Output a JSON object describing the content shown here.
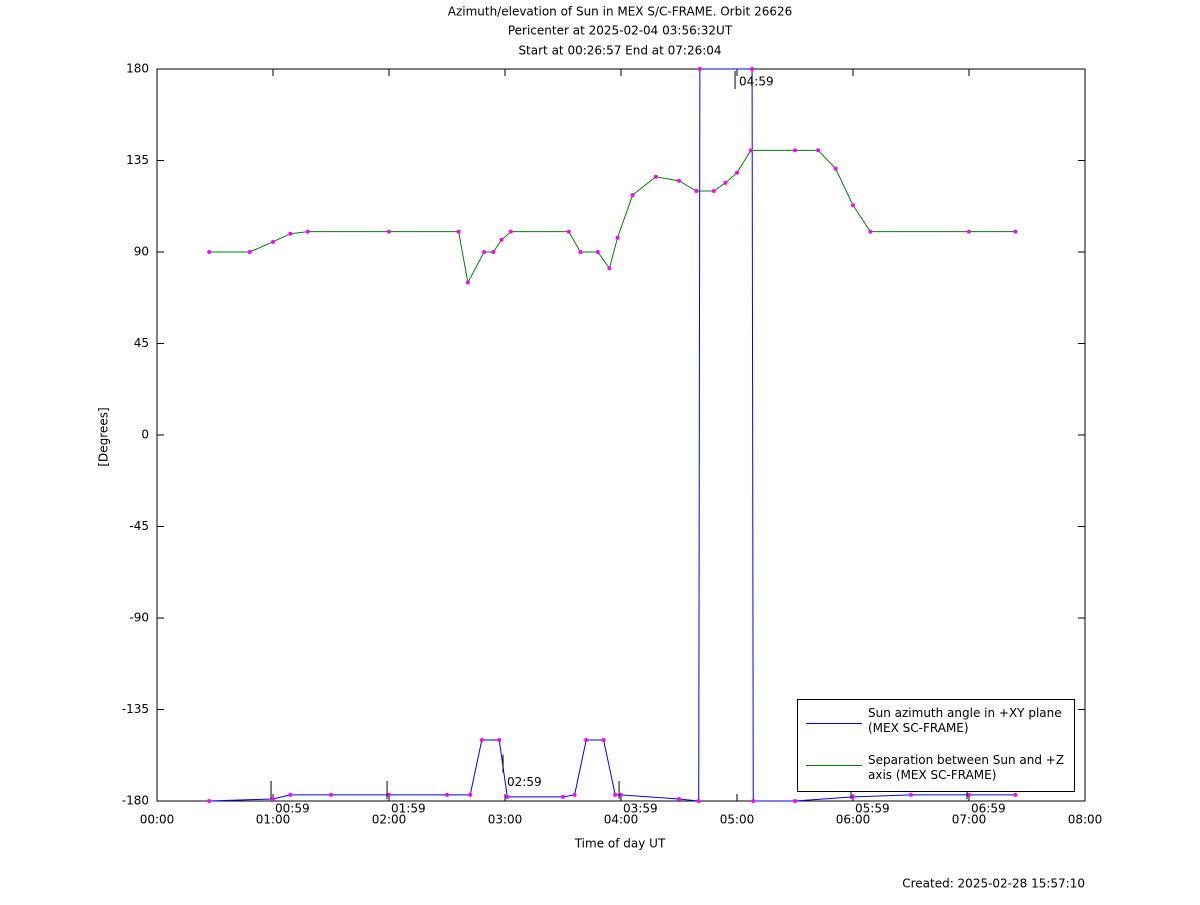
{
  "chart_data": {
    "type": "line",
    "title": "Azimuth/elevation of Sun in MEX S/C-FRAME.  Orbit 26626",
    "subtitle": [
      "Pericenter at 2025-02-04 03:56:32UT",
      "Start at 00:26:57 End at 07:26:04"
    ],
    "xlabel": "Time of day UT",
    "ylabel": "[Degrees]",
    "footer": "Created: 2025-02-28 15:57:10",
    "xlim": [
      0,
      8
    ],
    "xticks": [
      {
        "value": 0,
        "label": "00:00"
      },
      {
        "value": 1,
        "label": "01:00"
      },
      {
        "value": 2,
        "label": "02:00"
      },
      {
        "value": 3,
        "label": "03:00"
      },
      {
        "value": 4,
        "label": "04:00"
      },
      {
        "value": 5,
        "label": "05:00"
      },
      {
        "value": 6,
        "label": "06:00"
      },
      {
        "value": 7,
        "label": "07:00"
      },
      {
        "value": 8,
        "label": "08:00"
      }
    ],
    "ylim": [
      -180,
      180
    ],
    "yticks": [
      180,
      135,
      90,
      45,
      0,
      -45,
      -90,
      -135,
      -180
    ],
    "legend": "lower right",
    "series": [
      {
        "name": "Sun azimuth angle in +XY plane (MEX SC-FRAME)",
        "color": "#0000ff",
        "x": [
          0.45,
          1.0,
          1.15,
          1.5,
          2.0,
          2.5,
          2.7,
          2.8,
          2.95,
          3.02,
          3.5,
          3.6,
          3.7,
          3.85,
          3.95,
          4.0,
          4.5,
          4.67,
          4.68,
          5.13,
          5.14,
          5.5,
          6.0,
          6.5,
          7.0,
          7.4
        ],
        "values": [
          -180,
          -179,
          -177,
          -177,
          -177,
          -177,
          -177,
          -150,
          -150,
          -178,
          -178,
          -177,
          -150,
          -150,
          -177,
          -177,
          -179,
          -180,
          180,
          180,
          -180,
          -180,
          -178,
          -177,
          -177,
          -177
        ]
      },
      {
        "name": "Separation between Sun and +Z axis (MEX SC-FRAME)",
        "color": "#008000",
        "x": [
          0.45,
          0.8,
          1.0,
          1.15,
          1.3,
          2.0,
          2.6,
          2.68,
          2.82,
          2.9,
          2.97,
          3.05,
          3.55,
          3.65,
          3.8,
          3.9,
          3.97,
          4.1,
          4.3,
          4.5,
          4.65,
          4.8,
          4.9,
          5.0,
          5.12,
          5.5,
          5.7,
          5.85,
          6.0,
          6.15,
          7.0,
          7.4
        ],
        "values": [
          90,
          90,
          95,
          99,
          100,
          100,
          100,
          75,
          90,
          90,
          96,
          100,
          100,
          90,
          90,
          82,
          97,
          118,
          127,
          125,
          120,
          120,
          124,
          129,
          140,
          140,
          140,
          131,
          113,
          100,
          100,
          100
        ]
      }
    ],
    "time_markers": [
      {
        "x": 0.983,
        "y": -180,
        "label": "00:59"
      },
      {
        "x": 1.983,
        "y": -180,
        "label": "01:59"
      },
      {
        "x": 2.983,
        "y": -167,
        "label": "02:59"
      },
      {
        "x": 3.983,
        "y": -180,
        "label": "03:59"
      },
      {
        "x": 4.983,
        "y": 180,
        "label": "04:59"
      },
      {
        "x": 5.983,
        "y": -180,
        "label": "05:59"
      },
      {
        "x": 6.983,
        "y": -180,
        "label": "06:59"
      }
    ]
  }
}
